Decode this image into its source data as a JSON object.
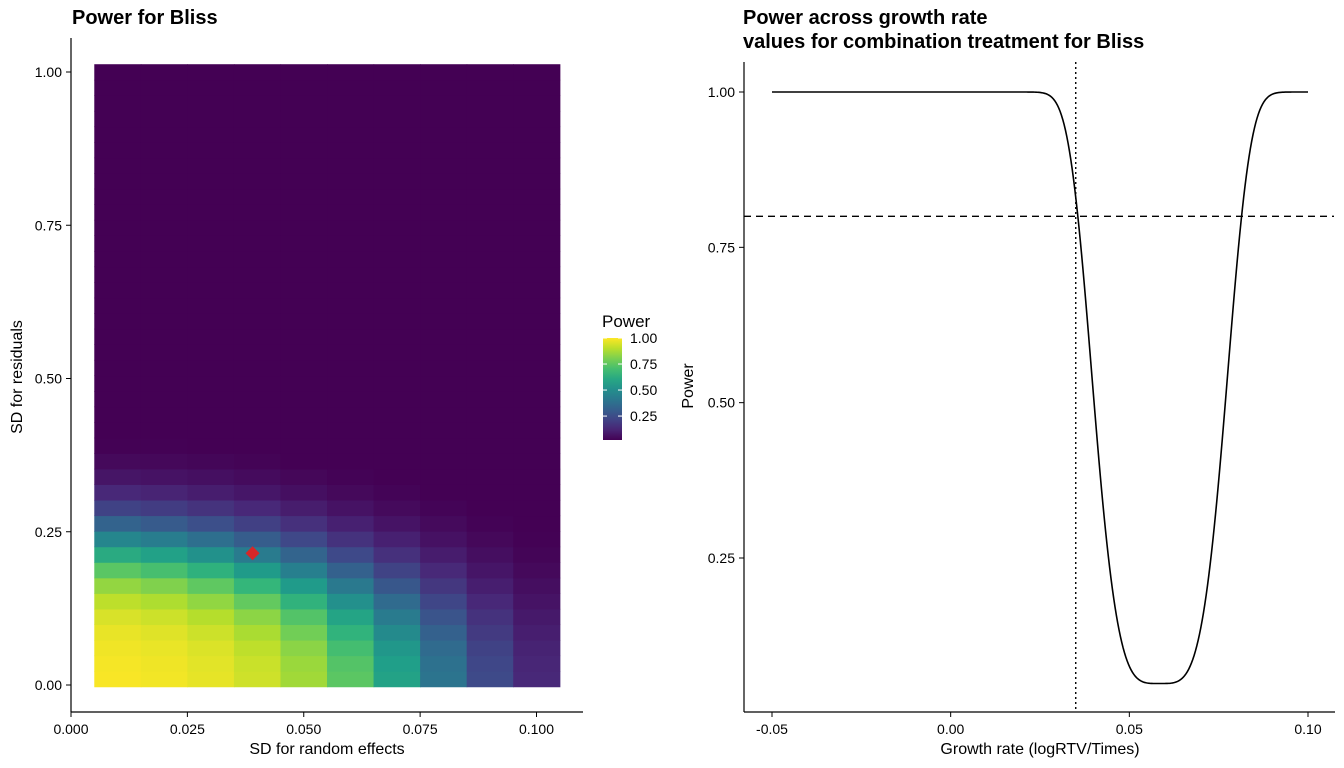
{
  "chart_data": [
    {
      "type": "heatmap",
      "title": "Power for Bliss",
      "xlabel": "SD for random effects",
      "ylabel": "SD for residuals",
      "xlim": [
        0.0,
        0.105
      ],
      "ylim": [
        0.0,
        1.0
      ],
      "x_ticks": [
        0.0,
        0.025,
        0.05,
        0.075,
        0.1
      ],
      "x_tick_labels": [
        "0.000",
        "0.025",
        "0.050",
        "0.075",
        "0.100"
      ],
      "y_ticks": [
        0.0,
        0.25,
        0.5,
        0.75,
        1.0
      ],
      "y_tick_labels": [
        "0.00",
        "0.25",
        "0.50",
        "0.75",
        "1.00"
      ],
      "x_centers": [
        0.01,
        0.02,
        0.03,
        0.04,
        0.05,
        0.06,
        0.07,
        0.08,
        0.09,
        0.1
      ],
      "x_cell_width": 0.01,
      "y_range": [
        0.01,
        1.0
      ],
      "y_steps": 40,
      "power_model": {
        "form": "power = 1 / (1 + exp(k * (sqrt(x^2 + y^2/n) - c)))",
        "k": 75,
        "c": 0.0745,
        "n": 10
      },
      "marker": {
        "x": 0.039,
        "y": 0.215,
        "color": "#d62728",
        "shape": "diamond"
      },
      "legend": {
        "title": "Power",
        "placement": "right",
        "ticks": [
          1.0,
          0.75,
          0.5,
          0.25
        ],
        "tick_labels": [
          "1.00",
          "0.75",
          "0.50",
          "0.25"
        ],
        "range": [
          0.02,
          1.0
        ]
      },
      "colormap": "viridis",
      "grid": false
    },
    {
      "type": "line",
      "title_line1": "Power across growth rate",
      "title_line2": "values for combination treatment for  Bliss",
      "xlabel": "Growth rate (logRTV/Times)",
      "ylabel": "Power",
      "xlim": [
        -0.055,
        0.105
      ],
      "ylim": [
        0.03,
        1.05
      ],
      "x_ticks": [
        -0.05,
        0.0,
        0.05,
        0.1
      ],
      "x_tick_labels": [
        "-0.05",
        "0.00",
        "0.05",
        "0.10"
      ],
      "y_ticks": [
        0.25,
        0.5,
        0.75,
        1.0
      ],
      "y_tick_labels": [
        "0.25",
        "0.50",
        "0.75",
        "1.00"
      ],
      "curve": {
        "x_range": [
          -0.05,
          0.1
        ],
        "form": "power = 1 - (1 - min) * exp(-((x - center) / width)^4)",
        "center": 0.0585,
        "width": 0.0205,
        "min": 0.048
      },
      "hline": {
        "y": 0.8,
        "style": "dashed"
      },
      "vline": {
        "x": 0.035,
        "style": "dotted"
      },
      "grid": false
    }
  ]
}
